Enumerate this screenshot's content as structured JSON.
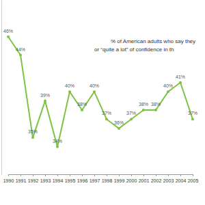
{
  "chart_data": {
    "type": "line",
    "title": "% of American adults who say they",
    "subtitle": "or “quite a lot” of confidence in th",
    "categories": [
      "1990",
      "1991",
      "1992",
      "1993",
      "1994",
      "1995",
      "1996",
      "1997",
      "1998",
      "1999",
      "2000",
      "2001",
      "2002",
      "2003",
      "2004",
      "2005"
    ],
    "values": [
      46,
      44,
      35,
      39,
      34,
      40,
      38,
      40,
      37,
      36,
      37,
      38,
      38,
      40,
      41,
      37
    ],
    "value_labels": [
      "46%",
      "44%",
      "35%",
      "39%",
      "34%",
      "40%",
      "38%",
      "40%",
      "37%",
      "36%",
      "37%",
      "38%",
      "38%",
      "40%",
      "41%",
      "37%"
    ],
    "color": "#7dc242",
    "marker": "circle",
    "ylim": [
      31,
      50
    ],
    "data_labels": true,
    "tick_labels": "x",
    "grid": false
  }
}
